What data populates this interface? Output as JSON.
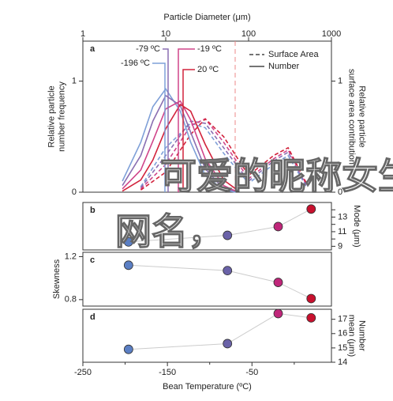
{
  "chart_data": [
    {
      "type": "line",
      "panel_label": "a",
      "x_label": "Particle Diameter (μm)",
      "xscale": "log",
      "xlim": [
        1,
        1000
      ],
      "xticks": [
        1,
        10,
        100,
        1000
      ],
      "ylim": [
        0,
        1.36
      ],
      "yticks": [
        0,
        1
      ],
      "y_label": [
        "Relative particle",
        "number frequency"
      ],
      "y2lim": [
        0,
        1.36
      ],
      "y2ticks": [
        0,
        1
      ],
      "y2_label": [
        "Relative particle",
        "surface area contribution"
      ],
      "temperatures": [
        {
          "label": "-196 ºC",
          "color": "#7fa0d8"
        },
        {
          "label": "-79 ºC",
          "color": "#8a6fb2"
        },
        {
          "label": "-19 ºC",
          "color": "#d0458a"
        },
        {
          "label": "20 ºC",
          "color": "#d2233c"
        }
      ],
      "groups": [
        {
          "name": "Surface Area",
          "dashed": true,
          "x": [
            5,
            10,
            20,
            30,
            50,
            100,
            200,
            300,
            500
          ],
          "series": [
            {
              "color": "#7fa0d8",
              "values": [
                0.05,
                0.4,
                0.62,
                0.58,
                0.35,
                0.08,
                0.25,
                0.33,
                0.05
              ]
            },
            {
              "color": "#8a6fb2",
              "values": [
                0.04,
                0.33,
                0.64,
                0.62,
                0.4,
                0.1,
                0.28,
                0.36,
                0.06
              ]
            },
            {
              "color": "#d0458a",
              "values": [
                0.03,
                0.25,
                0.6,
                0.66,
                0.45,
                0.12,
                0.3,
                0.38,
                0.07
              ]
            },
            {
              "color": "#d2233c",
              "values": [
                0.02,
                0.18,
                0.52,
                0.66,
                0.5,
                0.15,
                0.33,
                0.4,
                0.08
              ]
            }
          ]
        },
        {
          "name": "Number",
          "dashed": false,
          "x": [
            3,
            5,
            7,
            10,
            15,
            20,
            30,
            50,
            70
          ],
          "series": [
            {
              "color": "#7fa0d8",
              "values": [
                0.1,
                0.45,
                0.77,
                0.93,
                0.73,
                0.45,
                0.15,
                0.02,
                0
              ]
            },
            {
              "color": "#8a6fb2",
              "values": [
                0.06,
                0.33,
                0.64,
                0.87,
                0.78,
                0.54,
                0.21,
                0.03,
                0.01
              ]
            },
            {
              "color": "#d0458a",
              "values": [
                0.03,
                0.2,
                0.46,
                0.75,
                0.82,
                0.65,
                0.3,
                0.06,
                0.01
              ]
            },
            {
              "color": "#d2233c",
              "values": [
                0.01,
                0.11,
                0.29,
                0.57,
                0.79,
                0.73,
                0.43,
                0.11,
                0.03
              ]
            }
          ]
        }
      ]
    },
    {
      "type": "scatter",
      "panel_label": "b",
      "x": [
        -196,
        -79,
        -19,
        20
      ],
      "values": [
        9.6,
        10.5,
        11.7,
        14.1
      ],
      "colors": [
        "#5b7fc4",
        "#6a62a8",
        "#c0267a",
        "#c8102e"
      ],
      "ylim": [
        8.5,
        15
      ],
      "yticks": [
        9,
        11,
        13
      ],
      "yminorticks": [
        10,
        12,
        14
      ],
      "y_side": "right",
      "y_label": [
        "Mode (μm)"
      ]
    },
    {
      "type": "scatter",
      "panel_label": "c",
      "x": [
        -196,
        -79,
        -19,
        20
      ],
      "values": [
        1.12,
        1.07,
        0.96,
        0.81
      ],
      "colors": [
        "#5b7fc4",
        "#6a62a8",
        "#c0267a",
        "#c8102e"
      ],
      "ylim": [
        0.74,
        1.24
      ],
      "yticks": [
        0.8,
        1.2
      ],
      "y_side": "left",
      "y_label": [
        "Skewness"
      ]
    },
    {
      "type": "scatter",
      "panel_label": "d",
      "x": [
        -196,
        -79,
        -19,
        20
      ],
      "values": [
        14.9,
        15.3,
        17.4,
        17.1
      ],
      "colors": [
        "#5b7fc4",
        "#6a62a8",
        "#c0267a",
        "#c8102e"
      ],
      "ylim": [
        14,
        17.7
      ],
      "yticks": [
        14,
        15,
        16,
        17
      ],
      "y_side": "right",
      "y_label": [
        "Number",
        "mean (μm)"
      ],
      "x_label": "Bean Temperature (ºC)",
      "xlim": [
        -250,
        44
      ],
      "xticks": [
        -250,
        -150,
        -50
      ],
      "xminorticks": [
        -200,
        -100,
        0
      ]
    }
  ],
  "overlay": {
    "lines": [
      "可爱的昵称女生",
      "网名，"
    ]
  }
}
